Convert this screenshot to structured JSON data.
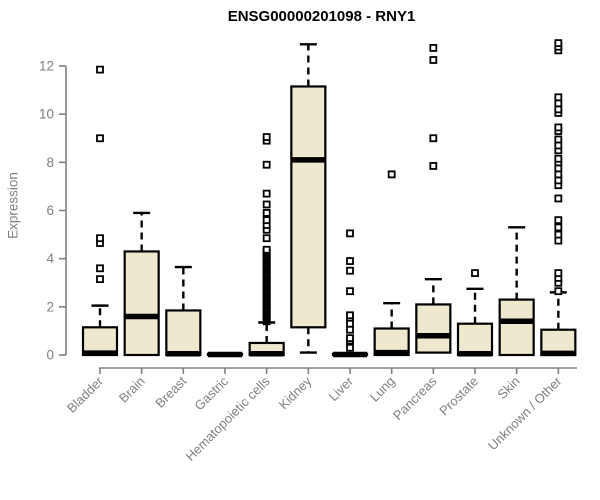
{
  "window": {
    "kind": "static-plot"
  },
  "chart_data": {
    "type": "boxplot",
    "title": "ENSG00000201098 - RNY1",
    "ylabel": "Expression",
    "xlabel": "",
    "yticks": [
      0,
      2,
      4,
      6,
      8,
      10,
      12
    ],
    "ylim": [
      0,
      13.2
    ],
    "grid": false,
    "legend": "none",
    "categories": [
      "Bladder",
      "Brain",
      "Breast",
      "Gastric",
      "Hematopoietic cells",
      "Kidney",
      "Liver",
      "Lung",
      "Pancreas",
      "Prostate",
      "Skin",
      "Unknown / Other"
    ],
    "boxes": [
      {
        "category": "Bladder",
        "low": 0,
        "q1": 0,
        "median": 0.08,
        "q3": 1.15,
        "high": 2.05,
        "outliers": [
          3.15,
          3.6,
          4.65,
          4.85,
          9.0,
          11.85
        ]
      },
      {
        "category": "Brain",
        "low": 0,
        "q1": 0,
        "median": 1.6,
        "q3": 4.3,
        "high": 5.9,
        "outliers": []
      },
      {
        "category": "Breast",
        "low": 0,
        "q1": 0,
        "median": 0.05,
        "q3": 1.85,
        "high": 3.65,
        "outliers": []
      },
      {
        "category": "Gastric",
        "low": 0,
        "q1": 0,
        "median": 0.02,
        "q3": 0.05,
        "high": 0.05,
        "outliers": []
      },
      {
        "category": "Hematopoietic cells",
        "low": 0,
        "q1": 0,
        "median": 0.05,
        "q3": 0.5,
        "high": 1.35,
        "outliers": [
          4.85,
          5.2,
          5.4,
          5.6,
          5.9,
          6.25,
          6.7,
          7.9,
          8.9,
          9.05
        ],
        "outlier_band": [
          1.4,
          4.4
        ]
      },
      {
        "category": "Kidney",
        "low": 0.1,
        "q1": 1.15,
        "median": 8.1,
        "q3": 11.15,
        "high": 12.9,
        "outliers": []
      },
      {
        "category": "Liver",
        "low": 0,
        "q1": 0,
        "median": 0.02,
        "q3": 0.05,
        "high": 0.05,
        "outliers": [
          0.3,
          0.6,
          0.7,
          1.05,
          1.3,
          1.55,
          1.65,
          2.65,
          3.5,
          3.9,
          5.05
        ]
      },
      {
        "category": "Lung",
        "low": 0,
        "q1": 0,
        "median": 0.1,
        "q3": 1.1,
        "high": 2.15,
        "outliers": [
          7.5
        ]
      },
      {
        "category": "Pancreas",
        "low": 0.1,
        "q1": 0.1,
        "median": 0.8,
        "q3": 2.1,
        "high": 3.15,
        "outliers": [
          7.85,
          9.0,
          12.25,
          12.75
        ]
      },
      {
        "category": "Prostate",
        "low": 0,
        "q1": 0,
        "median": 0.05,
        "q3": 1.3,
        "high": 2.75,
        "outliers": [
          3.4
        ]
      },
      {
        "category": "Skin",
        "low": 0,
        "q1": 0,
        "median": 1.4,
        "q3": 2.3,
        "high": 5.3,
        "outliers": []
      },
      {
        "category": "Unknown / Other",
        "low": 0,
        "q1": 0,
        "median": 0.07,
        "q3": 1.05,
        "high": 2.6,
        "outliers": [
          2.65,
          3.0,
          3.2,
          3.4,
          4.75,
          5.0,
          5.3,
          5.6,
          6.5,
          7.05,
          7.25,
          7.5,
          7.75,
          8.0,
          8.15,
          8.5,
          8.7,
          8.95,
          9.3,
          9.45,
          10.05,
          10.2,
          10.45,
          10.7,
          12.65,
          12.8,
          12.95
        ]
      }
    ],
    "colors": {
      "box_fill": "#EDE8CE",
      "box_stroke": "#000000",
      "median": "#000000",
      "whisker": "#000000",
      "outlier_stroke": "#000000",
      "outlier_fill": "#FFFFFF",
      "axis": "#808080",
      "tick_label": "#808080",
      "title": "#000000"
    }
  }
}
